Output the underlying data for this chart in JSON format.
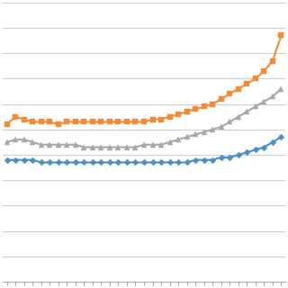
{
  "n_points": 33,
  "orange_values": [
    62,
    65,
    64,
    63,
    63,
    63,
    62,
    63,
    63,
    63,
    63,
    63,
    63,
    63,
    63,
    63,
    63,
    64,
    64,
    65,
    66,
    67,
    68,
    69,
    70,
    72,
    74,
    76,
    78,
    80,
    83,
    87,
    97
  ],
  "gray_values": [
    55,
    56,
    56,
    55,
    54,
    54,
    54,
    54,
    54,
    53,
    53,
    53,
    53,
    53,
    53,
    53,
    54,
    54,
    54,
    55,
    56,
    57,
    58,
    59,
    60,
    61,
    63,
    65,
    67,
    69,
    71,
    73,
    76
  ],
  "blue_values": [
    48,
    48,
    48,
    48,
    47,
    47,
    47,
    47,
    47,
    47,
    47,
    47,
    47,
    47,
    47,
    47,
    47,
    47,
    47,
    47,
    47,
    47,
    48,
    48,
    48,
    49,
    49,
    50,
    51,
    52,
    53,
    55,
    57
  ],
  "orange_color": "#F28C38",
  "gray_color": "#A8A8A8",
  "blue_color": "#4A90C4",
  "line_width": 1.5,
  "orange_marker_size": 4.5,
  "gray_marker_size": 4.5,
  "blue_marker_size": 3.5,
  "ylim": [
    0,
    110
  ],
  "xlim": [
    -0.5,
    32.5
  ],
  "background_color": "#ffffff",
  "grid_color": "#d0d0d0",
  "grid_linewidth": 0.8,
  "ytick_positions": [
    0,
    10,
    20,
    30,
    40,
    50,
    60,
    70,
    80,
    90,
    100,
    110
  ]
}
